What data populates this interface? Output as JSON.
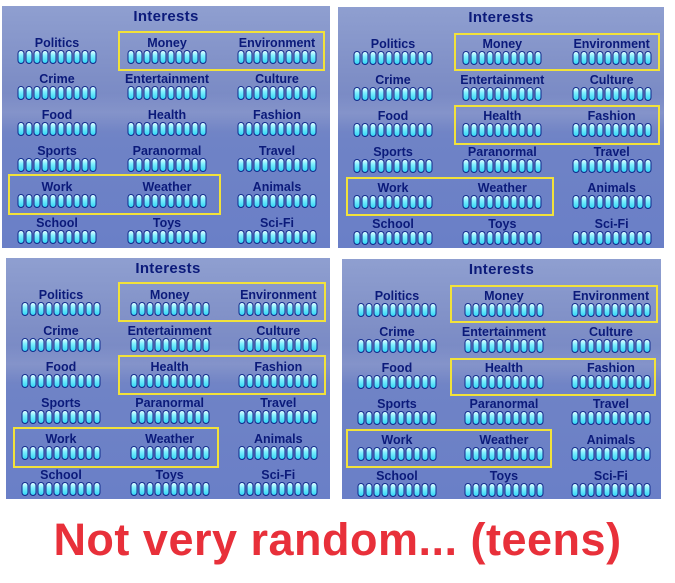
{
  "panels": [
    {
      "title": "Interests",
      "interests": [
        {
          "label": "Politics",
          "level": 10
        },
        {
          "label": "Money",
          "level": 10
        },
        {
          "label": "Environment",
          "level": 10
        },
        {
          "label": "Crime",
          "level": 10
        },
        {
          "label": "Entertainment",
          "level": 10
        },
        {
          "label": "Culture",
          "level": 10
        },
        {
          "label": "Food",
          "level": 10
        },
        {
          "label": "Health",
          "level": 10
        },
        {
          "label": "Fashion",
          "level": 10
        },
        {
          "label": "Sports",
          "level": 10
        },
        {
          "label": "Paranormal",
          "level": 10
        },
        {
          "label": "Travel",
          "level": 10
        },
        {
          "label": "Work",
          "level": 10
        },
        {
          "label": "Weather",
          "level": 10
        },
        {
          "label": "Animals",
          "level": 10
        },
        {
          "label": "School",
          "level": 10
        },
        {
          "label": "Toys",
          "level": 10
        },
        {
          "label": "Sci-Fi",
          "level": 10
        }
      ]
    },
    {
      "title": "Interests",
      "interests": [
        {
          "label": "Politics",
          "level": 10
        },
        {
          "label": "Money",
          "level": 10
        },
        {
          "label": "Environment",
          "level": 10
        },
        {
          "label": "Crime",
          "level": 10
        },
        {
          "label": "Entertainment",
          "level": 10
        },
        {
          "label": "Culture",
          "level": 10
        },
        {
          "label": "Food",
          "level": 10
        },
        {
          "label": "Health",
          "level": 10
        },
        {
          "label": "Fashion",
          "level": 10
        },
        {
          "label": "Sports",
          "level": 10
        },
        {
          "label": "Paranormal",
          "level": 10
        },
        {
          "label": "Travel",
          "level": 10
        },
        {
          "label": "Work",
          "level": 10
        },
        {
          "label": "Weather",
          "level": 10
        },
        {
          "label": "Animals",
          "level": 10
        },
        {
          "label": "School",
          "level": 10
        },
        {
          "label": "Toys",
          "level": 10
        },
        {
          "label": "Sci-Fi",
          "level": 10
        }
      ]
    },
    {
      "title": "Interests",
      "interests": [
        {
          "label": "Politics",
          "level": 10
        },
        {
          "label": "Money",
          "level": 10
        },
        {
          "label": "Environment",
          "level": 10
        },
        {
          "label": "Crime",
          "level": 10
        },
        {
          "label": "Entertainment",
          "level": 10
        },
        {
          "label": "Culture",
          "level": 10
        },
        {
          "label": "Food",
          "level": 10
        },
        {
          "label": "Health",
          "level": 10
        },
        {
          "label": "Fashion",
          "level": 10
        },
        {
          "label": "Sports",
          "level": 10
        },
        {
          "label": "Paranormal",
          "level": 10
        },
        {
          "label": "Travel",
          "level": 10
        },
        {
          "label": "Work",
          "level": 10
        },
        {
          "label": "Weather",
          "level": 10
        },
        {
          "label": "Animals",
          "level": 10
        },
        {
          "label": "School",
          "level": 10
        },
        {
          "label": "Toys",
          "level": 10
        },
        {
          "label": "Sci-Fi",
          "level": 10
        }
      ]
    },
    {
      "title": "Interests",
      "interests": [
        {
          "label": "Politics",
          "level": 10
        },
        {
          "label": "Money",
          "level": 10
        },
        {
          "label": "Environment",
          "level": 10
        },
        {
          "label": "Crime",
          "level": 10
        },
        {
          "label": "Entertainment",
          "level": 10
        },
        {
          "label": "Culture",
          "level": 10
        },
        {
          "label": "Food",
          "level": 10
        },
        {
          "label": "Health",
          "level": 10
        },
        {
          "label": "Fashion",
          "level": 10
        },
        {
          "label": "Sports",
          "level": 10
        },
        {
          "label": "Paranormal",
          "level": 10
        },
        {
          "label": "Travel",
          "level": 10
        },
        {
          "label": "Work",
          "level": 10
        },
        {
          "label": "Weather",
          "level": 10
        },
        {
          "label": "Animals",
          "level": 10
        },
        {
          "label": "School",
          "level": 10
        },
        {
          "label": "Toys",
          "level": 10
        },
        {
          "label": "Sci-Fi",
          "level": 10
        }
      ]
    }
  ],
  "highlight_color": "#f2e23a",
  "footer_text": "Not very random... (teens)",
  "footer_color": "#e8303a"
}
